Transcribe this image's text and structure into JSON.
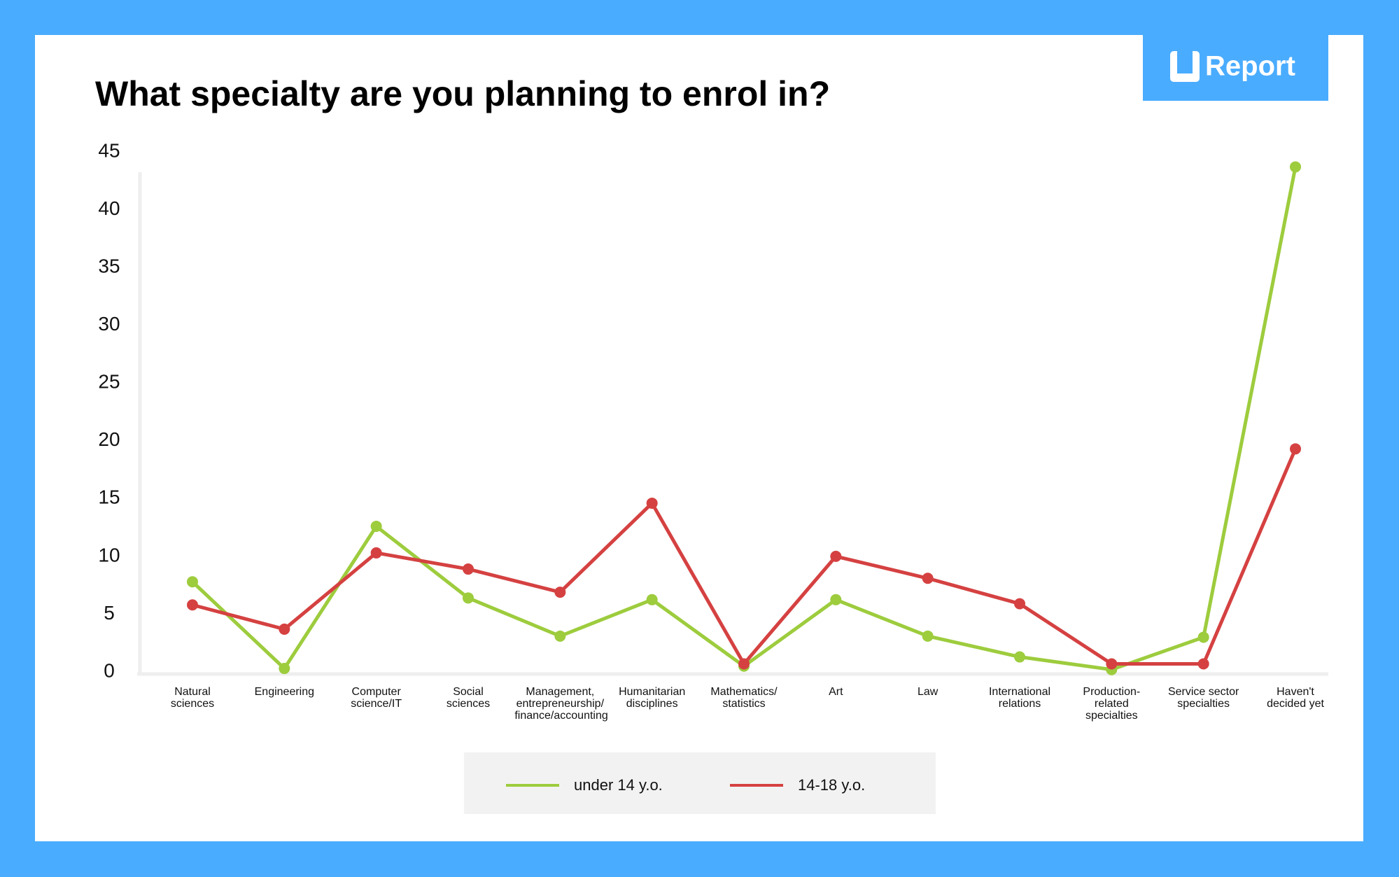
{
  "logo": "Report",
  "chart_data": {
    "type": "line",
    "title": "What specialty are you planning to enrol in?",
    "categories": [
      "Natural\nsciences",
      "Engineering",
      "Computer\nscience/IT",
      "Social\nsciences",
      "Management,\nentrepreneurship/\nfinance/accounting",
      "Humanitarian\ndisciplines",
      "Mathematics/\nstatistics",
      "Art",
      "Law",
      "International\nrelations",
      "Production-\nrelated\nspecialties",
      "Service sector\nspecialties",
      "Haven't\ndecided yet"
    ],
    "series": [
      {
        "name": "under 14 y.o.",
        "color": "#9dcc3d",
        "values": [
          7.8,
          0.3,
          12.6,
          6.4,
          3.1,
          6.25,
          0.5,
          6.25,
          3.1,
          1.3,
          0.2,
          3.0,
          43.7
        ]
      },
      {
        "name": "14-18 y.o.",
        "color": "#d54141",
        "values": [
          5.8,
          3.7,
          10.3,
          8.9,
          6.9,
          14.6,
          0.7,
          10.0,
          8.1,
          5.9,
          0.7,
          0.7,
          19.3
        ]
      }
    ],
    "ylim": [
      0,
      45
    ],
    "yticks": [
      0,
      5,
      10,
      15,
      20,
      25,
      30,
      35,
      40,
      45
    ],
    "grid": false,
    "legend": "bottom"
  }
}
